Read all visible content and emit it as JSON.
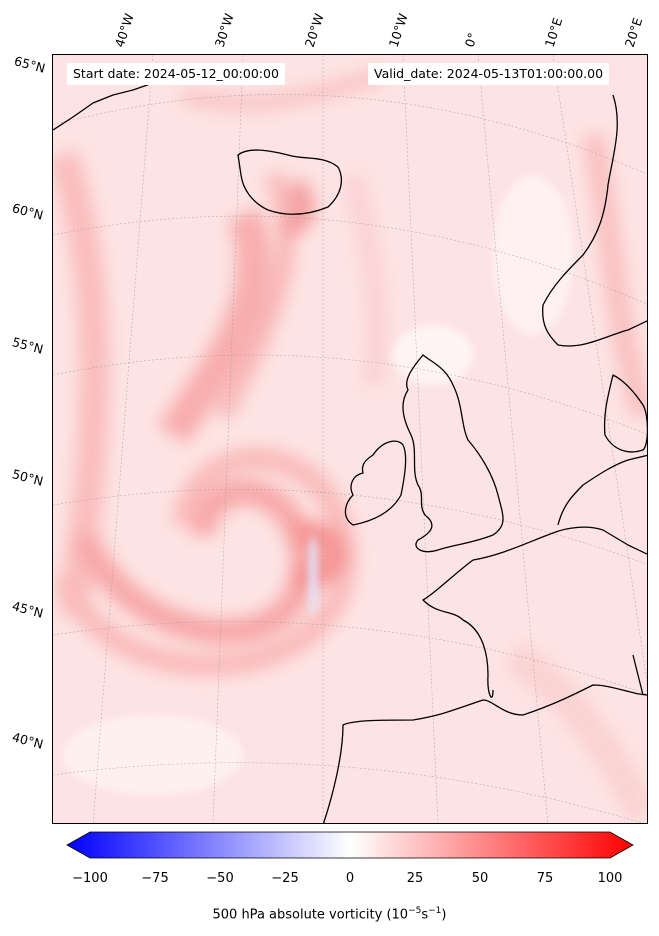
{
  "header": {
    "start_label": "Start date: 2024-05-12_00:00:00",
    "valid_label": "Valid_date: 2024-05-13T01:00:00.00"
  },
  "lon_labels": [
    "40°W",
    "30°W",
    "20°W",
    "10°W",
    "0°",
    "10°E",
    "20°E"
  ],
  "lat_labels": [
    "65°N",
    "60°N",
    "55°N",
    "50°N",
    "45°N",
    "40°N"
  ],
  "colorbar": {
    "ticks": [
      "−100",
      "−75",
      "−50",
      "−25",
      "0",
      "25",
      "50",
      "75",
      "100"
    ],
    "title_main": "500 hPa absolute vorticity (10",
    "title_exp1": "−5",
    "title_mid": "s",
    "title_exp2": "−1",
    "title_end": ")",
    "min_color": "#0000ff",
    "mid_color": "#ffffff",
    "max_color": "#ff0000"
  }
}
